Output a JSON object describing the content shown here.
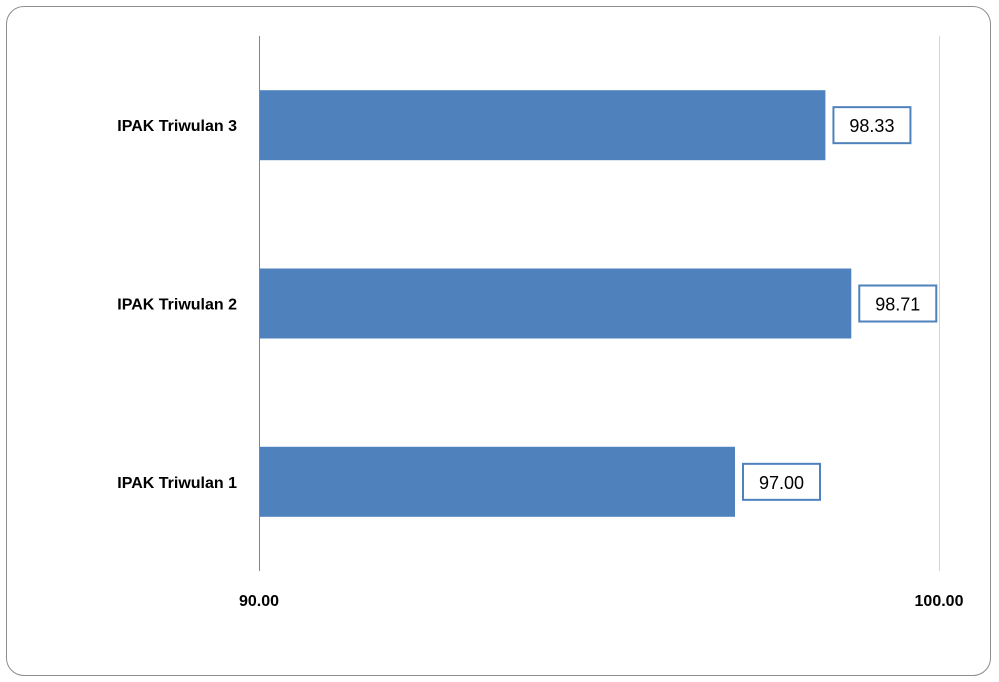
{
  "colors": {
    "bar": "#4f81bd",
    "label_border": "#4f81bd",
    "axis": "#868686",
    "frame_border": "#8c8c8c"
  },
  "chart_data": {
    "type": "bar",
    "orientation": "horizontal",
    "categories": [
      "IPAK Triwulan 1",
      "IPAK Triwulan 2",
      "IPAK Triwulan 3"
    ],
    "values": [
      97.0,
      98.71,
      98.33
    ],
    "data_labels": [
      "97.00",
      "98.71",
      "98.33"
    ],
    "xlim": [
      90,
      100
    ],
    "x_ticks": [
      "90.00",
      "100.00"
    ],
    "grid": false,
    "legend": "none"
  }
}
